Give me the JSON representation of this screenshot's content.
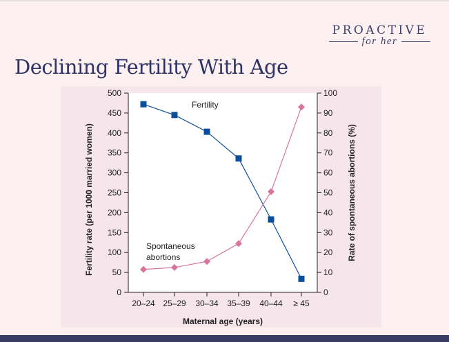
{
  "logo": {
    "brand": "PROACTIVE",
    "sub": "for her"
  },
  "slide": {
    "title": "Declining Fertility With Age"
  },
  "chart_data": {
    "type": "line",
    "title": "",
    "xlabel": "Maternal age (years)",
    "ylabel": "Fertility rate (per 1000 married women)",
    "y2label": "Rate of spontaneous abortions (%)",
    "categories": [
      "20–24",
      "25–29",
      "30–34",
      "35–39",
      "40–44",
      "≥ 45"
    ],
    "ylim": [
      0,
      500
    ],
    "y2lim": [
      0,
      100
    ],
    "yticks": [
      0,
      50,
      100,
      150,
      200,
      250,
      300,
      350,
      400,
      450,
      500
    ],
    "y2ticks": [
      0,
      10,
      20,
      30,
      40,
      50,
      60,
      70,
      80,
      90,
      100
    ],
    "grid": false,
    "series": [
      {
        "name": "Fertility",
        "axis": "left",
        "marker": "square",
        "color": "#0b4f9c",
        "values": [
          472,
          445,
          403,
          336,
          183,
          34
        ]
      },
      {
        "name": "Spontaneous abortions",
        "axis": "right",
        "marker": "diamond",
        "color": "#d9759c",
        "values": [
          11.5,
          12.5,
          15.5,
          24.5,
          50.5,
          93
        ]
      }
    ],
    "annotations": [
      "Fertility",
      "Spontaneous",
      "abortions"
    ]
  }
}
